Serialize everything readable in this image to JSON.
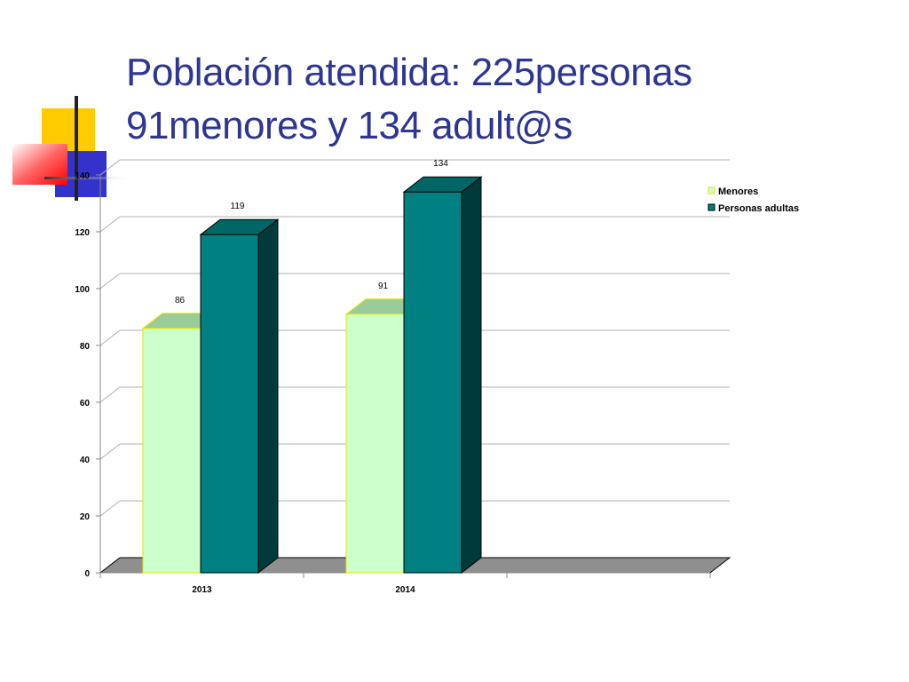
{
  "slide": {
    "title_line1": "Población atendida: 225personas",
    "title_line2": "91menores y  134 adult@s"
  },
  "chart_data": {
    "type": "bar",
    "style": "3d-clustered",
    "categories": [
      "2013",
      "2014"
    ],
    "series": [
      {
        "name": "Menores",
        "values": [
          86,
          91
        ],
        "color": "#ccffcc",
        "edge": "#e6e600"
      },
      {
        "name": "Personas adultas",
        "values": [
          119,
          134
        ],
        "color": "#008080",
        "edge": "#000000"
      }
    ],
    "ylim": [
      0,
      140
    ],
    "yticks": [
      0,
      20,
      40,
      60,
      80,
      100,
      120,
      140
    ],
    "grid": true,
    "legend_position": "top-right",
    "data_labels": true
  },
  "colors": {
    "title": "#2e3592",
    "floor": "#8f8f8f",
    "gridline": "#b0b0b0"
  }
}
